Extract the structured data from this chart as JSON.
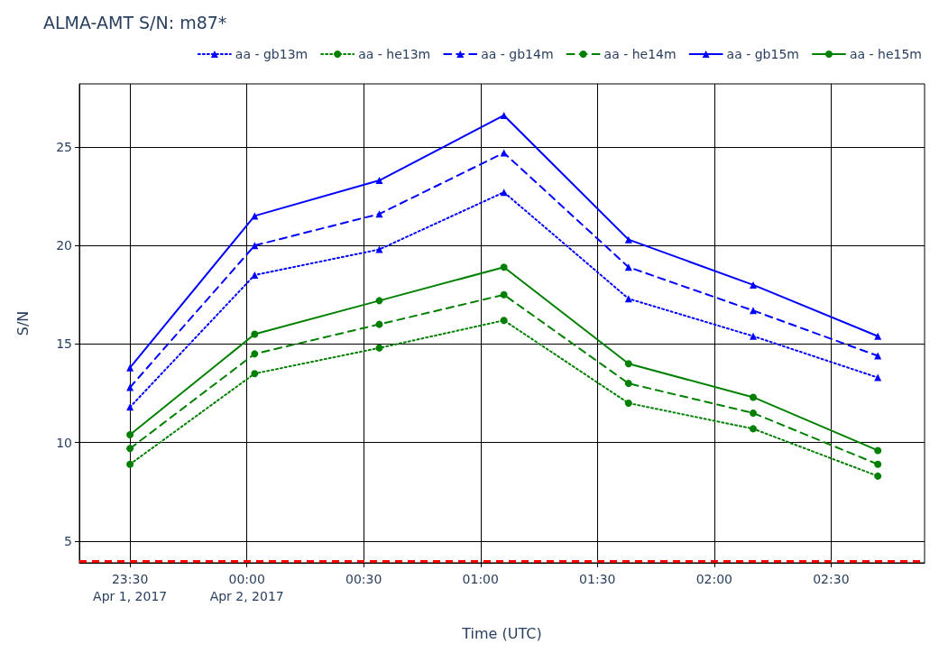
{
  "chart_data": {
    "type": "line",
    "title": "ALMA-AMT S/N: m87*",
    "xlabel": "Time (UTC)",
    "ylabel": "S/N",
    "x": [
      "2017-04-01T23:30",
      "2017-04-02T00:02",
      "2017-04-02T00:34",
      "2017-04-02T01:06",
      "2017-04-02T01:38",
      "2017-04-02T02:10",
      "2017-04-02T02:42"
    ],
    "xlim": [
      "2017-04-01T23:17",
      "2017-04-02T02:54"
    ],
    "xticks": [
      {
        "value": "2017-04-01T23:30",
        "label": "23:30\nApr 1, 2017"
      },
      {
        "value": "2017-04-02T00:00",
        "label": "00:00\nApr 2, 2017"
      },
      {
        "value": "2017-04-02T00:30",
        "label": "00:30"
      },
      {
        "value": "2017-04-02T01:00",
        "label": "01:00"
      },
      {
        "value": "2017-04-02T01:30",
        "label": "01:30"
      },
      {
        "value": "2017-04-02T02:00",
        "label": "02:00"
      },
      {
        "value": "2017-04-02T02:30",
        "label": "02:30"
      }
    ],
    "ylim": [
      3.9,
      28.2
    ],
    "yticks": [
      5,
      10,
      15,
      20,
      25
    ],
    "grid": true,
    "legend": "top right",
    "ref_lines": [
      {
        "axis": "y",
        "value": 4,
        "color": "#ff0000",
        "line_style": "dashed"
      }
    ],
    "series": [
      {
        "name": "aa - gb13m",
        "color": "#0000ff",
        "marker": "triangle",
        "line_style": "dotted",
        "values": [
          11.8,
          18.5,
          19.8,
          22.7,
          17.3,
          15.4,
          13.3
        ]
      },
      {
        "name": "aa - he13m",
        "color": "#008000",
        "marker": "circle",
        "line_style": "dotted",
        "values": [
          8.9,
          13.5,
          14.8,
          16.2,
          12.0,
          10.7,
          8.3
        ]
      },
      {
        "name": "aa - gb14m",
        "color": "#0000ff",
        "marker": "triangle",
        "line_style": "dashed",
        "values": [
          12.8,
          20.0,
          21.6,
          24.7,
          18.9,
          16.7,
          14.4
        ]
      },
      {
        "name": "aa - he14m",
        "color": "#008000",
        "marker": "circle",
        "line_style": "dashed",
        "values": [
          9.7,
          14.5,
          16.0,
          17.5,
          13.0,
          11.5,
          8.9
        ]
      },
      {
        "name": "aa - gb15m",
        "color": "#0000ff",
        "marker": "triangle",
        "line_style": "solid",
        "values": [
          13.8,
          21.5,
          23.3,
          26.6,
          20.3,
          18.0,
          15.4
        ]
      },
      {
        "name": "aa - he15m",
        "color": "#008000",
        "marker": "circle",
        "line_style": "solid",
        "values": [
          10.4,
          15.5,
          17.2,
          18.9,
          14.0,
          12.3,
          9.6
        ]
      }
    ]
  }
}
